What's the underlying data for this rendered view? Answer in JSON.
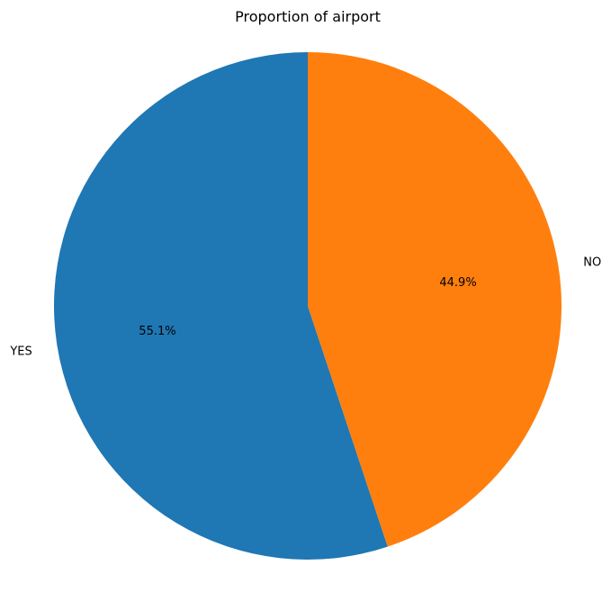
{
  "chart_data": {
    "type": "pie",
    "title": "Proportion of airport",
    "slices": [
      {
        "label": "YES",
        "value": 55.1,
        "pct_label": "55.1%",
        "color": "#1f77b4"
      },
      {
        "label": "NO",
        "value": 44.9,
        "pct_label": "44.9%",
        "color": "#ff7f0e"
      }
    ],
    "start_angle_deg": 90,
    "direction": "counterclockwise"
  }
}
